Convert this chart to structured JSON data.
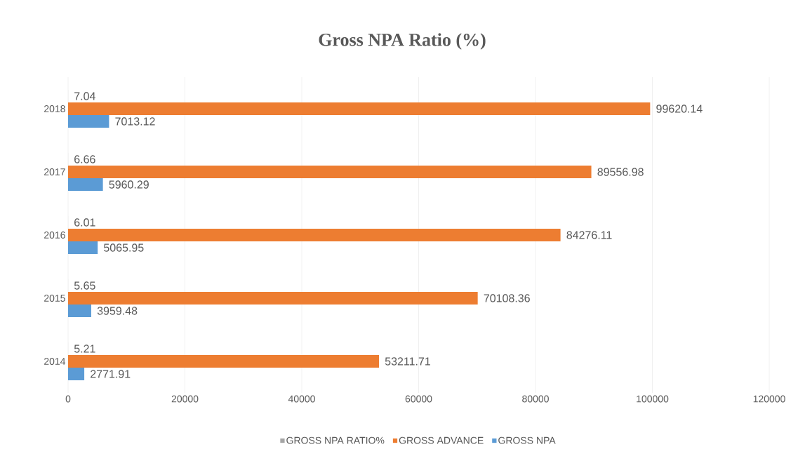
{
  "chart_data": {
    "type": "bar",
    "orientation": "horizontal",
    "title": "Gross NPA Ratio (%)",
    "categories": [
      "2018",
      "2017",
      "2016",
      "2015",
      "2014"
    ],
    "series": [
      {
        "name": "GROSS NPA RATIO%",
        "color": "#a5a5a5",
        "values": [
          7.04,
          6.66,
          6.01,
          5.65,
          5.21
        ]
      },
      {
        "name": "GROSS ADVANCE",
        "color": "#ed7d31",
        "values": [
          99620.14,
          89556.98,
          84276.11,
          70108.36,
          53211.71
        ]
      },
      {
        "name": "GROSS NPA",
        "color": "#5b9bd5",
        "values": [
          7013.12,
          5960.29,
          5065.95,
          3959.48,
          2771.91
        ]
      }
    ],
    "xlim": [
      0,
      120000
    ],
    "xticks": [
      0,
      20000,
      40000,
      60000,
      80000,
      100000,
      120000
    ],
    "grid": "x",
    "legend": "bottom",
    "data_labels": true
  }
}
